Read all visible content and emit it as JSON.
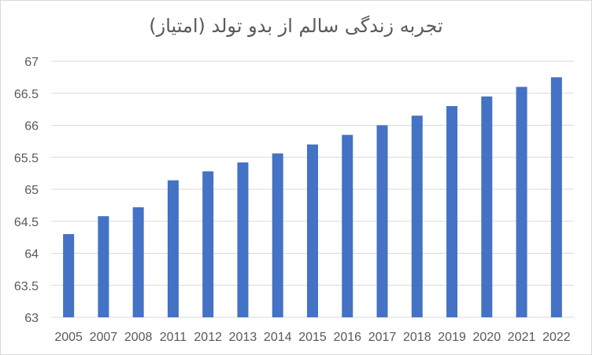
{
  "chart_data": {
    "type": "bar",
    "title": "تجربه زندگی سالم از بدو تولد (امتیاز)",
    "xlabel": "",
    "ylabel": "",
    "categories": [
      "2005",
      "2007",
      "2008",
      "2011",
      "2012",
      "2013",
      "2014",
      "2015",
      "2016",
      "2017",
      "2018",
      "2019",
      "2020",
      "2021",
      "2022"
    ],
    "values": [
      64.3,
      64.58,
      64.72,
      65.14,
      65.28,
      65.42,
      65.56,
      65.7,
      65.85,
      66.0,
      66.15,
      66.3,
      66.45,
      66.6,
      66.75
    ],
    "ylim": [
      63,
      67
    ],
    "yticks": [
      "63",
      "63.5",
      "64",
      "64.5",
      "65",
      "65.5",
      "66",
      "66.5",
      "67"
    ],
    "grid": true,
    "legend": "none",
    "colors": {
      "bar": "#4472C4",
      "grid": "#d9d9d9",
      "text": "#595959"
    }
  }
}
